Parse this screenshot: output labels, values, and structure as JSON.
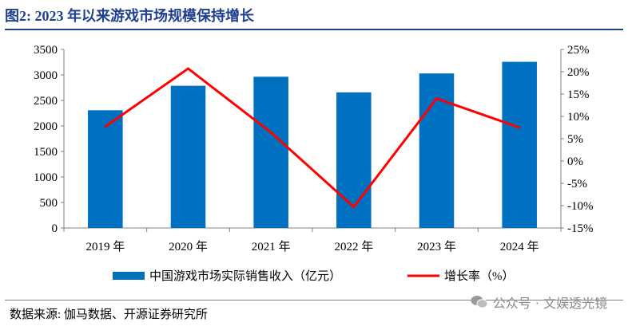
{
  "header": {
    "title": "图2:  2023 年以来游戏市场规模保持增长"
  },
  "footer": {
    "source": "数据来源:  伽马数据、开源证券研究所",
    "watermark_text": "公众号 · 文娱透光镜",
    "watermark_icon": "wechat-icon"
  },
  "chart_data": {
    "type": "bar",
    "categories": [
      "2019 年",
      "2020 年",
      "2021 年",
      "2022 年",
      "2023 年",
      "2024 年"
    ],
    "series": [
      {
        "name": "中国游戏市场实际销售收入（亿元）",
        "type": "bar",
        "axis": "left",
        "values": [
          2308,
          2787,
          2965,
          2658,
          3029,
          3257
        ],
        "color": "#0070c0"
      },
      {
        "name": "增长率（%）",
        "type": "line",
        "axis": "right",
        "values": [
          7.7,
          20.7,
          6.4,
          -10.3,
          14.0,
          7.5
        ],
        "color": "#ff0000"
      }
    ],
    "y_left": {
      "lim": [
        0,
        3500
      ],
      "ticks": [
        "0",
        "500",
        "1000",
        "1500",
        "2000",
        "2500",
        "3000",
        "3500"
      ]
    },
    "y_right": {
      "lim": [
        -15,
        25
      ],
      "ticks": [
        "-15%",
        "-10%",
        "-5%",
        "0%",
        "5%",
        "10%",
        "15%",
        "20%",
        "25%"
      ]
    },
    "grid": false,
    "legend": "bottom"
  }
}
